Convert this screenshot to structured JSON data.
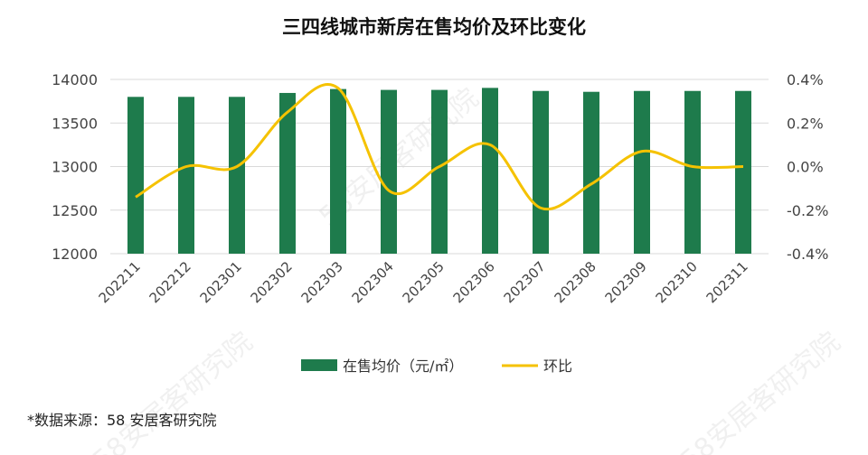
{
  "chart_data": {
    "type": "bar+line",
    "title": "三四线城市新房在售均价及环比变化",
    "categories": [
      "202211",
      "202212",
      "202301",
      "202302",
      "202303",
      "202304",
      "202305",
      "202306",
      "202307",
      "202308",
      "202309",
      "202310",
      "202311"
    ],
    "series": [
      {
        "name": "在售均价（元/㎡）",
        "type": "bar",
        "axis": "left",
        "color": "#1e7b4c",
        "values": [
          13800,
          13800,
          13800,
          13845,
          13890,
          13880,
          13880,
          13903,
          13868,
          13858,
          13868,
          13868,
          13868
        ]
      },
      {
        "name": "环比",
        "type": "line",
        "axis": "right",
        "color": "#f5c200",
        "values": [
          -0.14,
          0.0,
          0.0,
          0.25,
          0.36,
          -0.11,
          0.0,
          0.1,
          -0.19,
          -0.08,
          0.07,
          0.0,
          0.0
        ]
      }
    ],
    "left_axis": {
      "range": [
        12000,
        14000
      ],
      "ticks": [
        "12000",
        "12500",
        "13000",
        "13500",
        "14000"
      ]
    },
    "right_axis": {
      "range": [
        -0.4,
        0.4
      ],
      "ticks": [
        "-0.4%",
        "-0.2%",
        "0.0%",
        "0.2%",
        "0.4%"
      ]
    },
    "grid": true,
    "legend": "bottom"
  },
  "source": "*数据来源：58 安居客研究院",
  "watermark": "58安居客研究院"
}
